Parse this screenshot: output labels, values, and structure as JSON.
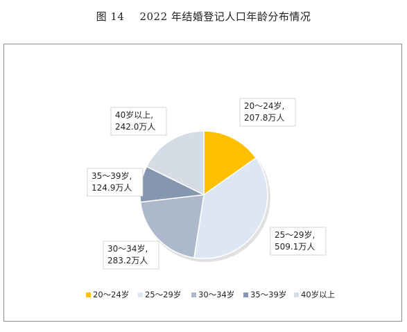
{
  "title": {
    "number": "图 14",
    "text": "2022 年结婚登记人口年龄分布情况"
  },
  "chart_data": {
    "type": "pie",
    "title": "2022 年结婚登记人口年龄分布情况",
    "unit": "万人",
    "legend_position": "bottom",
    "start_angle_deg": 0,
    "direction": "clockwise",
    "slices": [
      {
        "label": "20～24岁",
        "value": 207.8,
        "color": "#FFC000",
        "data_label": [
          "20～24岁,",
          "207.8万人"
        ]
      },
      {
        "label": "25～29岁",
        "value": 509.1,
        "color": "#DDE7F4",
        "data_label": [
          "25～29岁,",
          "509.1万人"
        ]
      },
      {
        "label": "30～34岁",
        "value": 283.2,
        "color": "#ADB9CA",
        "data_label": [
          "30～34岁,",
          "283.2万人"
        ]
      },
      {
        "label": "35～39岁",
        "value": 124.9,
        "color": "#8496B0",
        "data_label": [
          "35～39岁,",
          "124.9万人"
        ]
      },
      {
        "label": "40岁以上",
        "value": 242.0,
        "color": "#D6DCE5",
        "data_label": [
          "40岁以上,",
          "242.0万人"
        ]
      }
    ]
  }
}
